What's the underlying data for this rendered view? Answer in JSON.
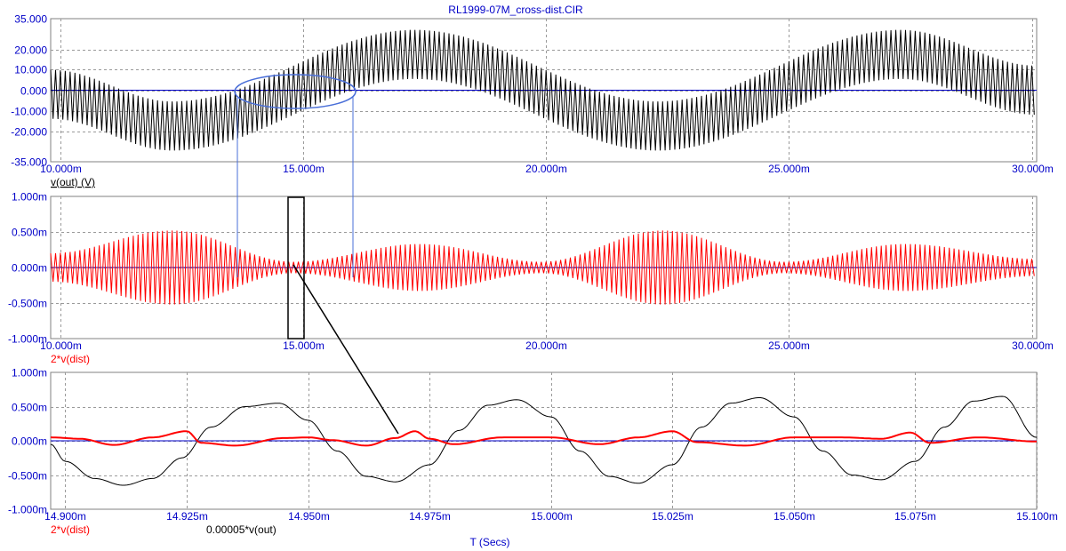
{
  "window": {
    "title": "RL1999-07M_cross-dist.CIR"
  },
  "colors": {
    "axis_text": "#0000c8",
    "out": "#000000",
    "dist": "#ff0000",
    "zero_line": "#0000c8",
    "annotation": "#4a6fd8"
  },
  "chart_data": [
    {
      "type": "line",
      "id": "panel-top",
      "title": "RL1999-07M_cross-dist.CIR",
      "xlim": [
        9.8,
        30.1
      ],
      "ylim": [
        -35,
        35
      ],
      "y_ticks": [
        35,
        20,
        10,
        0,
        -10,
        -20,
        -35
      ],
      "y_tick_labels": [
        "35.000",
        "20.000",
        "10.000",
        "0.000",
        "-10.000",
        "-20.000",
        "-35.000"
      ],
      "x_ticks": [
        10,
        15,
        20,
        25,
        30
      ],
      "x_tick_labels": [
        "10.000m",
        "15.000m",
        "20.000m",
        "25.000m",
        "30.000m"
      ],
      "grid": true,
      "series": [
        {
          "name": "v(out) (V)",
          "kind": "carrier_band",
          "color": "#000000",
          "envelope_center": {
            "t": [
              9.8,
              12.3,
              17.3,
              22.3,
              27.3,
              30.1
            ],
            "v": [
              -2,
              -17.5,
              17.5,
              -17.5,
              17.5,
              0
            ]
          },
          "half_band": 12,
          "carrier_period_ms": 0.1
        }
      ]
    },
    {
      "type": "line",
      "id": "panel-middle",
      "xlim": [
        9.8,
        30.1
      ],
      "ylim": [
        -1,
        1
      ],
      "y_ticks": [
        1,
        0.5,
        0,
        -0.5,
        -1
      ],
      "y_tick_labels": [
        "1.000m",
        "0.500m",
        "0.000m",
        "-0.500m",
        "-1.000m"
      ],
      "x_ticks": [
        10,
        15,
        20,
        25,
        30
      ],
      "x_tick_labels": [
        "10.000m",
        "15.000m",
        "20.000m",
        "25.000m",
        "30.000m"
      ],
      "grid": true,
      "series": [
        {
          "name": "2*v(dist)",
          "kind": "amplitude_band",
          "color": "#ff0000",
          "envelope": {
            "t": [
              9.8,
              12.3,
              14.8,
              17.4,
              19.9,
              22.4,
              24.9,
              27.4,
              30.1
            ],
            "v": [
              0.2,
              0.52,
              0.08,
              0.33,
              0.08,
              0.52,
              0.08,
              0.33,
              0.12
            ]
          },
          "carrier_period_ms": 0.1
        }
      ]
    },
    {
      "type": "line",
      "id": "panel-bottom",
      "xlim": [
        14.897,
        15.1
      ],
      "ylim": [
        -1,
        1
      ],
      "y_ticks": [
        1,
        0.5,
        0,
        -0.5,
        -1
      ],
      "y_tick_labels": [
        "1.000m",
        "0.500m",
        "0.000m",
        "-0.500m",
        "-1.000m"
      ],
      "x_ticks": [
        14.9,
        14.925,
        14.95,
        14.975,
        15.0,
        15.025,
        15.05,
        15.075,
        15.1
      ],
      "x_tick_labels": [
        "14.900m",
        "14.925m",
        "14.950m",
        "14.975m",
        "15.000m",
        "15.025m",
        "15.050m",
        "15.075m",
        "15.100m"
      ],
      "xlabel": "T (Secs)",
      "grid": true,
      "series": [
        {
          "name": "0.00005*v(out)",
          "color": "#000000",
          "x": [
            14.897,
            14.9,
            14.906,
            14.912,
            14.918,
            14.924,
            14.93,
            14.937,
            14.944,
            14.95,
            14.956,
            14.962,
            14.968,
            14.975,
            14.981,
            14.987,
            14.993,
            15.0,
            15.006,
            15.012,
            15.018,
            15.025,
            15.031,
            15.037,
            15.043,
            15.05,
            15.056,
            15.062,
            15.068,
            15.075,
            15.081,
            15.087,
            15.093,
            15.1
          ],
          "y": [
            -0.05,
            -0.3,
            -0.55,
            -0.65,
            -0.55,
            -0.25,
            0.2,
            0.5,
            0.55,
            0.3,
            -0.15,
            -0.52,
            -0.6,
            -0.35,
            0.15,
            0.52,
            0.6,
            0.35,
            -0.15,
            -0.52,
            -0.62,
            -0.35,
            0.2,
            0.55,
            0.63,
            0.35,
            -0.15,
            -0.5,
            -0.57,
            -0.3,
            0.2,
            0.58,
            0.65,
            0.05
          ]
        },
        {
          "name": "2*v(dist)",
          "color": "#ff0000",
          "x": [
            14.897,
            14.903,
            14.91,
            14.918,
            14.925,
            14.928,
            14.935,
            14.945,
            14.95,
            14.955,
            14.962,
            14.968,
            14.972,
            14.975,
            14.98,
            14.99,
            15.0,
            15.01,
            15.018,
            15.025,
            15.03,
            15.04,
            15.05,
            15.06,
            15.068,
            15.074,
            15.078,
            15.088,
            15.1
          ],
          "y": [
            0.05,
            0.03,
            -0.06,
            0.05,
            0.14,
            -0.03,
            -0.07,
            0.04,
            0.05,
            0.01,
            -0.07,
            0.04,
            0.14,
            0.03,
            -0.05,
            0.05,
            0.05,
            -0.05,
            0.05,
            0.14,
            -0.02,
            -0.07,
            0.05,
            0.05,
            0.03,
            0.12,
            -0.03,
            0.05,
            -0.01
          ]
        }
      ]
    }
  ],
  "legends": {
    "top": "v(out) (V)",
    "middle": "2*v(dist)",
    "bottom_1": "2*v(dist)",
    "bottom_2": "0.00005*v(out)"
  }
}
